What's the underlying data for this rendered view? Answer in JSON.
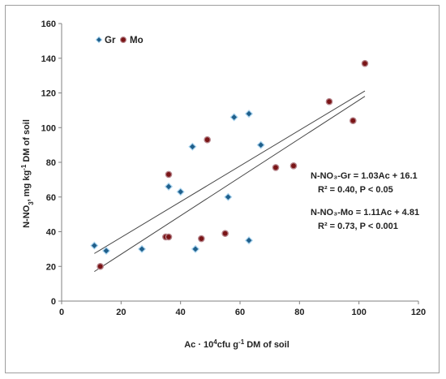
{
  "chart_data": {
    "type": "scatter",
    "xlim": [
      0,
      120
    ],
    "ylim": [
      0,
      160
    ],
    "x_ticks": [
      0,
      20,
      40,
      60,
      80,
      100,
      120
    ],
    "y_ticks": [
      0,
      20,
      40,
      60,
      80,
      100,
      120,
      140,
      160
    ],
    "grid": false,
    "legend_position": "top-left",
    "xlabel": {
      "main": "Ac · 10",
      "sup": "4",
      "rest": "cfu g",
      "sup2": "-1",
      "tail": " DM of soil"
    },
    "ylabel": {
      "main": "N-NO",
      "sub": "3",
      "rest": ", mg kg",
      "sup": "-1",
      "tail": " DM of soil"
    },
    "series": [
      {
        "name": "Gr",
        "marker": "diamond",
        "color": "#1f5f8b",
        "edge": "#a9d3ee",
        "x": [
          11,
          15,
          27,
          36,
          40,
          44,
          45,
          56,
          58,
          63,
          63,
          67
        ],
        "y": [
          32,
          29,
          30,
          66,
          63,
          89,
          30,
          60,
          106,
          108,
          35,
          90
        ],
        "fit": {
          "slope": 1.03,
          "intercept": 16.1,
          "x_range": [
            11,
            102
          ]
        }
      },
      {
        "name": "Mo",
        "marker": "circle",
        "color": "#7a1416",
        "edge": "#b5838a",
        "x": [
          13,
          35,
          36,
          36,
          47,
          49,
          55,
          72,
          78,
          90,
          98,
          102
        ],
        "y": [
          20,
          37,
          37,
          73,
          36,
          93,
          39,
          77,
          78,
          115,
          104,
          137
        ],
        "fit": {
          "slope": 1.11,
          "intercept": 4.81,
          "x_range": [
            11,
            102
          ]
        }
      }
    ],
    "annotations": [
      {
        "text": "N-NO₃-Gr = 1.03Ac + 16.1"
      },
      {
        "text": "R² = 0.40, P < 0.05"
      },
      {
        "text": "N-NO₃-Mo = 1.11Ac + 4.81"
      },
      {
        "text": "R² = 0.73, P < 0.001"
      }
    ]
  }
}
